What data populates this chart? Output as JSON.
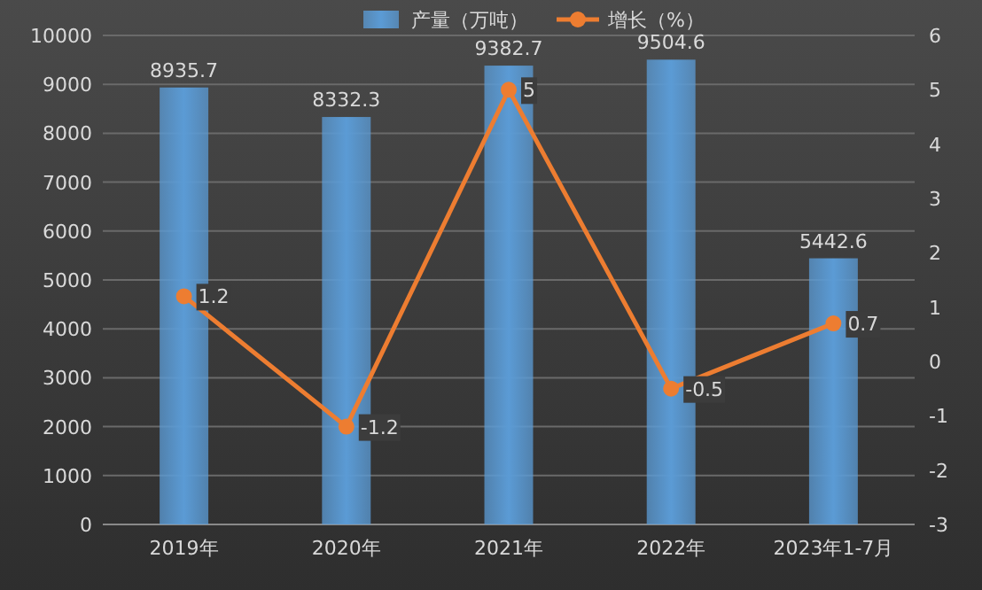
{
  "chart_data": {
    "type": "bar",
    "categories": [
      "2019年",
      "2020年",
      "2021年",
      "2022年",
      "2023年1-7月"
    ],
    "series": [
      {
        "name": "产量（万吨）",
        "color": "#5b9bd5",
        "values": [
          8935.7,
          8332.3,
          9382.7,
          9504.6,
          5442.6
        ]
      },
      {
        "name": "增长（%）",
        "type": "line",
        "axis": "y2",
        "color": "#ed7d31",
        "marker": "circle",
        "values": [
          1.2,
          -1.2,
          5,
          -0.5,
          0.7
        ]
      }
    ],
    "ylim": [
      0,
      10000
    ],
    "yticks": [
      0,
      1000,
      2000,
      3000,
      4000,
      5000,
      6000,
      7000,
      8000,
      9000,
      10000
    ],
    "y2lim": [
      -3,
      6
    ],
    "y2ticks": [
      -3,
      -2,
      -1,
      0,
      1,
      2,
      3,
      4,
      5,
      6
    ],
    "grid": "y",
    "legend": "top",
    "data_labels": true
  }
}
